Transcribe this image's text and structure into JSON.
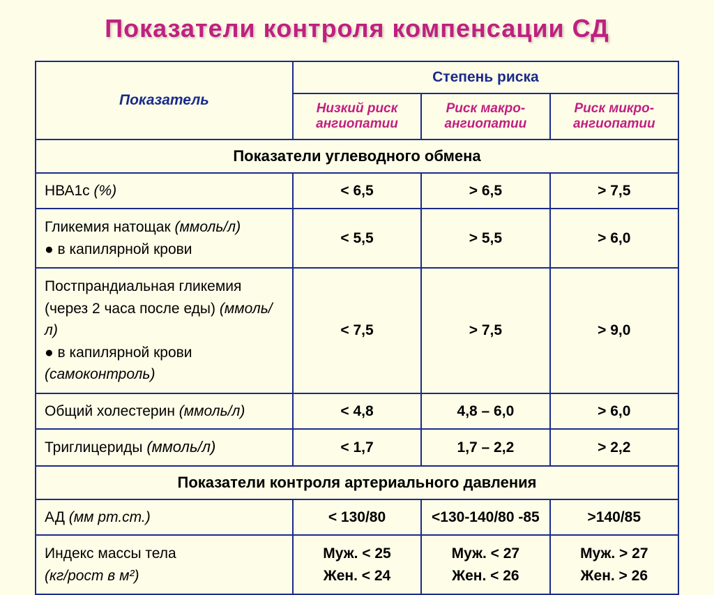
{
  "title": "Показатели контроля компенсации СД",
  "headers": {
    "param": "Показатель",
    "risk_top": "Степень риска",
    "risk_low": "Низкий риск ангиопатии",
    "risk_macro": "Риск макро-ангиопатии",
    "risk_micro": "Риск микро-ангиопатии"
  },
  "section1": "Показатели углеводного обмена",
  "rows": {
    "hba1c": {
      "label": "НВА1с",
      "unit": "(%)",
      "low": "< 6,5",
      "macro": "> 6,5",
      "micro": "> 7,5"
    },
    "fasting": {
      "label1": "Гликемия натощак",
      "unit1": "(ммоль/л)",
      "label2": "● в капилярной крови",
      "low": "< 5,5",
      "macro": "> 5,5",
      "micro": "> 6,0"
    },
    "postprandial": {
      "label1": "Постпрандиальная гликемия",
      "label2": "(через 2 часа после еды)",
      "unit2": "(ммоль/л)",
      "label3": "● в капилярной крови",
      "unit3": "(самоконтроль)",
      "low": "< 7,5",
      "macro": "> 7,5",
      "micro": "> 9,0"
    },
    "cholesterol": {
      "label": "Общий холестерин",
      "unit": "(ммоль/л)",
      "low": "< 4,8",
      "macro": "4,8 – 6,0",
      "micro": "> 6,0"
    },
    "triglycerides": {
      "label": "Триглицериды",
      "unit": "(ммоль/л)",
      "low": "< 1,7",
      "macro": "1,7 – 2,2",
      "micro": "> 2,2"
    }
  },
  "section2": "Показатели контроля артериального давления",
  "rows2": {
    "bp": {
      "label": "АД",
      "unit": "(мм рт.ст.)",
      "low": "< 130/80",
      "macro": "<130-140/80 -85",
      "micro": ">140/85"
    },
    "bmi": {
      "label": "Индекс массы тела",
      "unit": "(кг/рост в м²)",
      "low_m": "Муж. < 25",
      "low_f": "Жен. < 24",
      "macro_m": "Муж. < 27",
      "macro_f": "Жен. < 26",
      "micro_m": "Муж. > 27",
      "micro_f": "Жен. > 26"
    }
  },
  "style": {
    "bg": "#fefde8",
    "border": "#1a2b8a",
    "title_color": "#c02080",
    "header_blue": "#1a2b8a",
    "header_pink": "#c02080"
  }
}
